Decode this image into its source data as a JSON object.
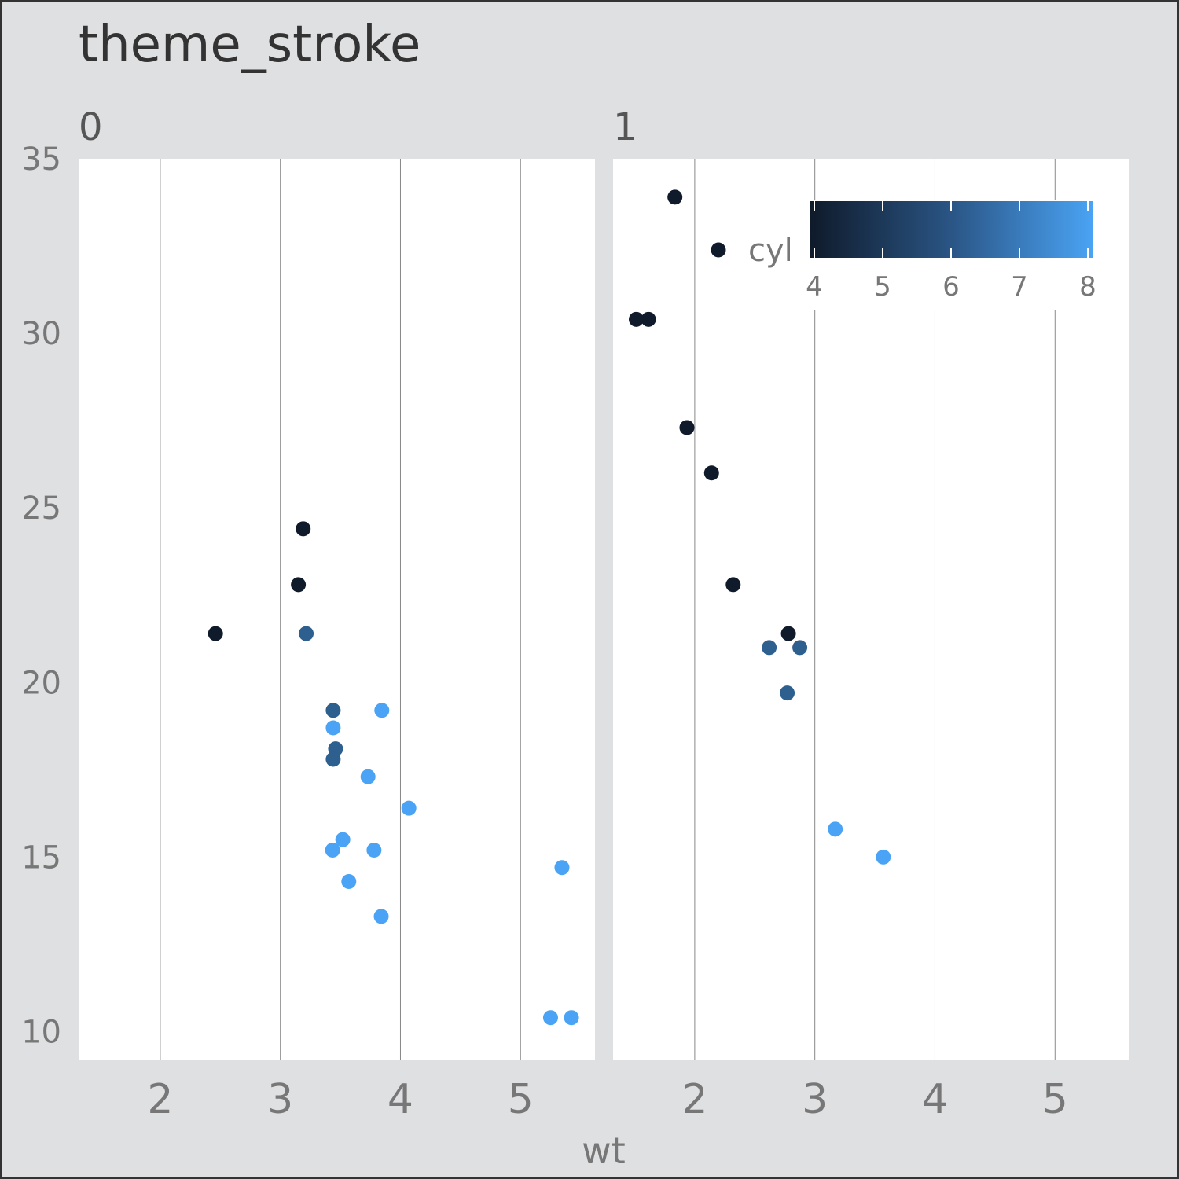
{
  "chart_data": {
    "type": "scatter",
    "title": "theme_stroke",
    "xlabel": "wt",
    "ylabel": "",
    "xlim": [
      1.32,
      5.62
    ],
    "ylim": [
      9.2,
      35.0
    ],
    "x_ticks": [
      2,
      3,
      4,
      5
    ],
    "y_ticks": [
      10,
      15,
      20,
      25,
      30,
      35
    ],
    "grid": "vertical major lines",
    "legend": {
      "title": "cyl",
      "type": "colorbar",
      "position": "top-right",
      "min": 4,
      "max": 8,
      "ticks": [
        4,
        5,
        6,
        7,
        8
      ],
      "color_low": "#0f1a2a",
      "color_high": "#4aa3f4"
    },
    "colors": {
      "background": "#dfe0e2",
      "panel": "#ffffff",
      "gridline": "#888888"
    },
    "facets": [
      {
        "label": "0",
        "points": [
          {
            "x": 2.46,
            "y": 21.4,
            "cyl": 4
          },
          {
            "x": 3.19,
            "y": 24.4,
            "cyl": 4
          },
          {
            "x": 3.15,
            "y": 22.8,
            "cyl": 4
          },
          {
            "x": 3.215,
            "y": 21.4,
            "cyl": 6
          },
          {
            "x": 3.44,
            "y": 19.2,
            "cyl": 6
          },
          {
            "x": 3.46,
            "y": 18.1,
            "cyl": 6
          },
          {
            "x": 3.44,
            "y": 17.8,
            "cyl": 6
          },
          {
            "x": 3.44,
            "y": 18.7,
            "cyl": 8
          },
          {
            "x": 3.57,
            "y": 14.3,
            "cyl": 8
          },
          {
            "x": 4.07,
            "y": 16.4,
            "cyl": 8
          },
          {
            "x": 3.73,
            "y": 17.3,
            "cyl": 8
          },
          {
            "x": 3.78,
            "y": 15.2,
            "cyl": 8
          },
          {
            "x": 5.25,
            "y": 10.4,
            "cyl": 8
          },
          {
            "x": 5.424,
            "y": 10.4,
            "cyl": 8
          },
          {
            "x": 5.345,
            "y": 14.7,
            "cyl": 8
          },
          {
            "x": 3.52,
            "y": 15.5,
            "cyl": 8
          },
          {
            "x": 3.435,
            "y": 15.2,
            "cyl": 8
          },
          {
            "x": 3.84,
            "y": 13.3,
            "cyl": 8
          },
          {
            "x": 3.845,
            "y": 19.2,
            "cyl": 8
          }
        ]
      },
      {
        "label": "1",
        "points": [
          {
            "x": 2.32,
            "y": 22.8,
            "cyl": 4
          },
          {
            "x": 1.615,
            "y": 30.4,
            "cyl": 4
          },
          {
            "x": 1.835,
            "y": 33.9,
            "cyl": 4
          },
          {
            "x": 1.935,
            "y": 27.3,
            "cyl": 4
          },
          {
            "x": 1.513,
            "y": 30.4,
            "cyl": 4
          },
          {
            "x": 2.14,
            "y": 26.0,
            "cyl": 4
          },
          {
            "x": 2.78,
            "y": 21.4,
            "cyl": 4
          },
          {
            "x": 2.62,
            "y": 21.0,
            "cyl": 6
          },
          {
            "x": 2.875,
            "y": 21.0,
            "cyl": 6
          },
          {
            "x": 2.77,
            "y": 19.7,
            "cyl": 6
          },
          {
            "x": 3.17,
            "y": 15.8,
            "cyl": 8
          },
          {
            "x": 3.57,
            "y": 15.0,
            "cyl": 8
          }
        ]
      }
    ]
  }
}
